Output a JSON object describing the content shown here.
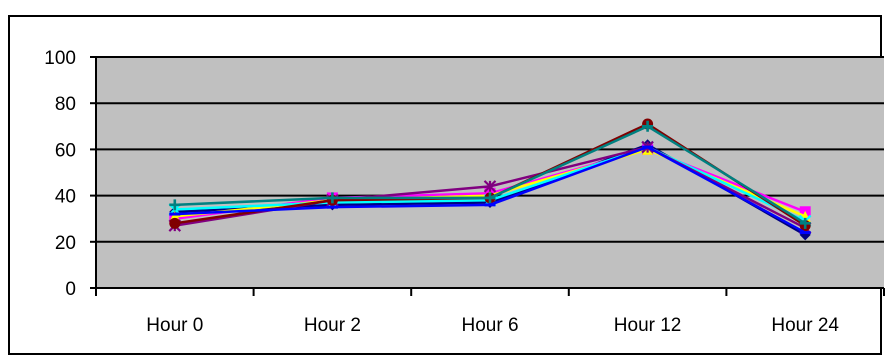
{
  "chart_data": {
    "type": "line",
    "title": "",
    "xlabel": "",
    "ylabel": "",
    "categories": [
      "Hour 0",
      "Hour 2",
      "Hour 6",
      "Hour 12",
      "Hour 24"
    ],
    "y_ticks": [
      "0",
      "20",
      "40",
      "60",
      "80",
      "100"
    ],
    "ylim": [
      0,
      100
    ],
    "grid": true,
    "legend": "none",
    "plot_background": "#c0c0c0",
    "series": [
      {
        "values": [
          33,
          36,
          37,
          62,
          23
        ],
        "color": "#000080",
        "marker": "diamond"
      },
      {
        "values": [
          30,
          39,
          41,
          60,
          33
        ],
        "color": "#ff00ff",
        "marker": "square"
      },
      {
        "values": [
          31,
          38,
          40,
          60,
          31
        ],
        "color": "#ffff00",
        "marker": "triangle"
      },
      {
        "values": [
          34,
          37,
          38,
          61,
          29
        ],
        "color": "#00ffff",
        "marker": "x"
      },
      {
        "values": [
          27,
          38,
          44,
          61,
          26
        ],
        "color": "#800080",
        "marker": "star"
      },
      {
        "values": [
          28,
          38,
          39,
          71,
          27
        ],
        "color": "#800000",
        "marker": "circle"
      },
      {
        "values": [
          36,
          39,
          39,
          70,
          28
        ],
        "color": "#008080",
        "marker": "plus"
      },
      {
        "values": [
          32,
          35,
          36,
          61,
          24
        ],
        "color": "#0000ff",
        "marker": "dash"
      }
    ]
  }
}
